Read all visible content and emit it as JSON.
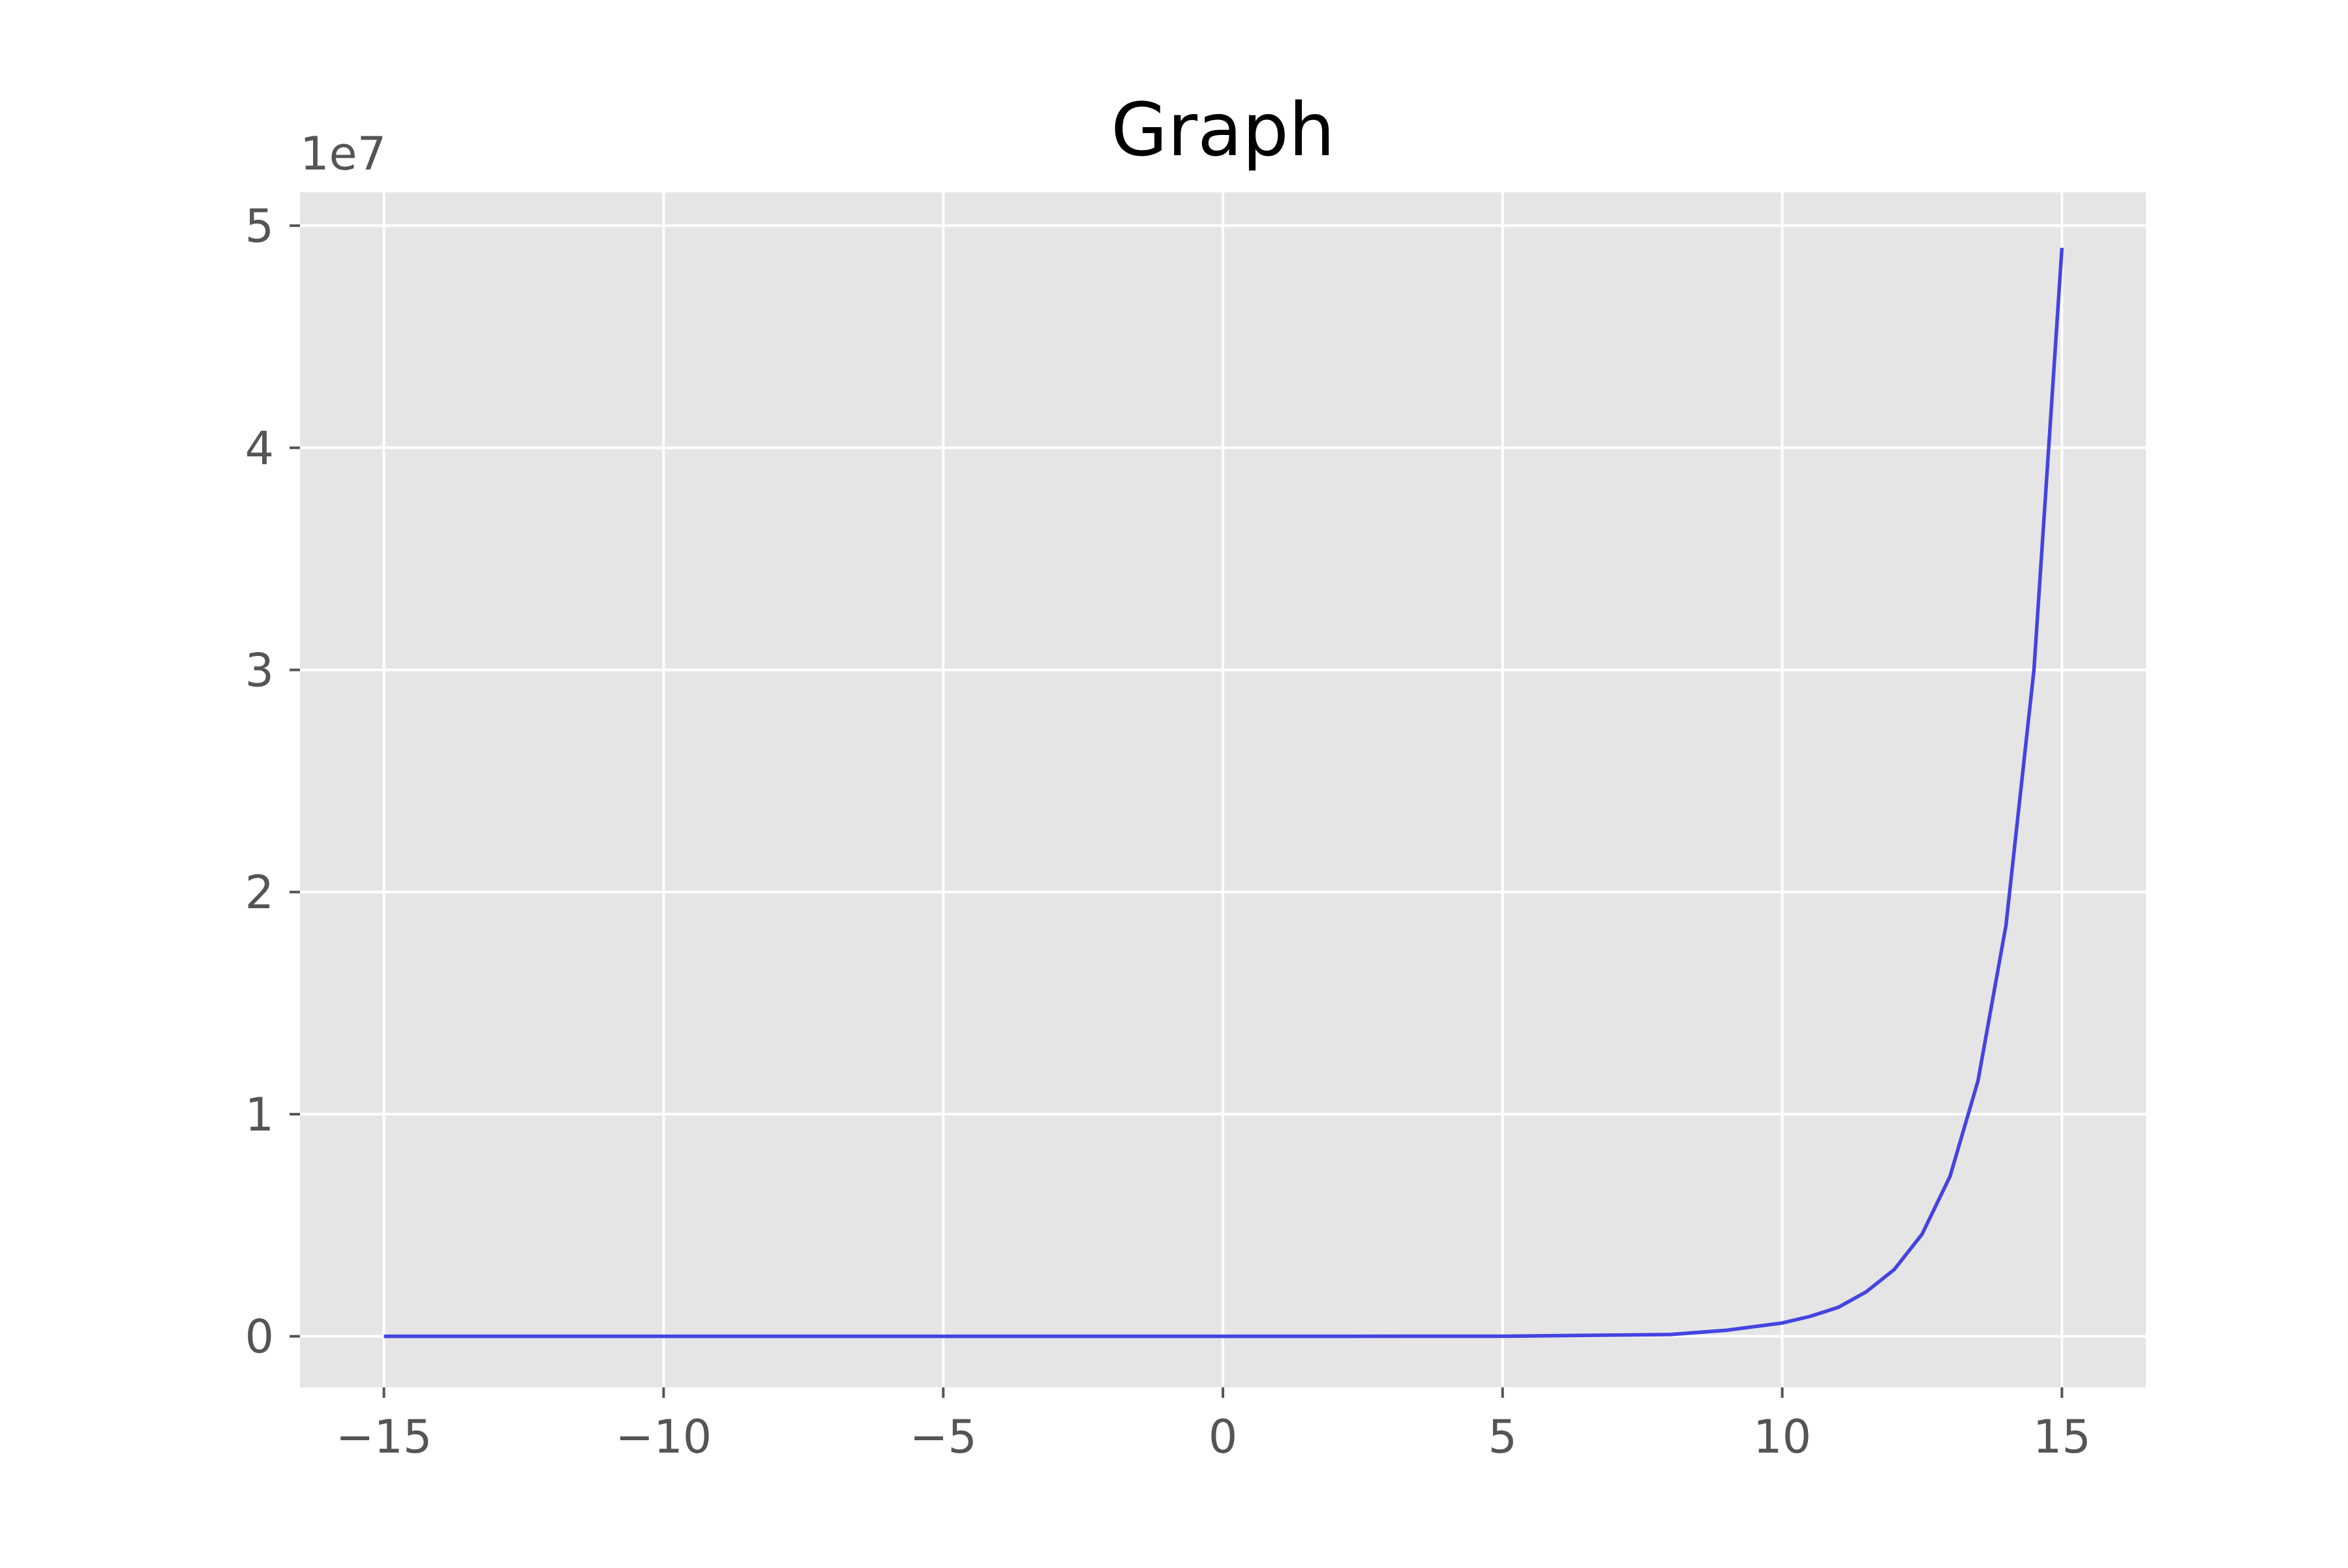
{
  "chart_data": {
    "type": "line",
    "title": "Graph",
    "xlabel": "",
    "ylabel": "",
    "y_offset_label": "1e7",
    "xlim": [
      -16.5,
      16.5
    ],
    "ylim": [
      -2300000,
      51500000
    ],
    "x_ticks": [
      {
        "value": -15,
        "label": "−15"
      },
      {
        "value": -10,
        "label": "−10"
      },
      {
        "value": -5,
        "label": "−5"
      },
      {
        "value": 0,
        "label": "0"
      },
      {
        "value": 5,
        "label": "5"
      },
      {
        "value": 10,
        "label": "10"
      },
      {
        "value": 15,
        "label": "15"
      }
    ],
    "y_ticks": [
      {
        "value": 0,
        "label": "0"
      },
      {
        "value": 10000000,
        "label": "1"
      },
      {
        "value": 20000000,
        "label": "2"
      },
      {
        "value": 30000000,
        "label": "3"
      },
      {
        "value": 40000000,
        "label": "4"
      },
      {
        "value": 50000000,
        "label": "5"
      }
    ],
    "grid": true,
    "style": "ggplot",
    "series": [
      {
        "color": "#4444e0",
        "x": [
          -15,
          -10,
          -5,
          0,
          5,
          8,
          9,
          10,
          10.5,
          11,
          11.5,
          12,
          12.5,
          13,
          13.5,
          14,
          14.5,
          15
        ],
        "y": [
          0,
          0,
          0,
          1,
          3900,
          81000,
          270000,
          600000,
          900000,
          1300000,
          2000000,
          3000000,
          4600000,
          7200000,
          11500000,
          18500000,
          30000000,
          49000000
        ]
      }
    ]
  },
  "colors": {
    "plot_background": "#e5e5e5",
    "grid": "#ffffff",
    "tick": "#555555"
  }
}
